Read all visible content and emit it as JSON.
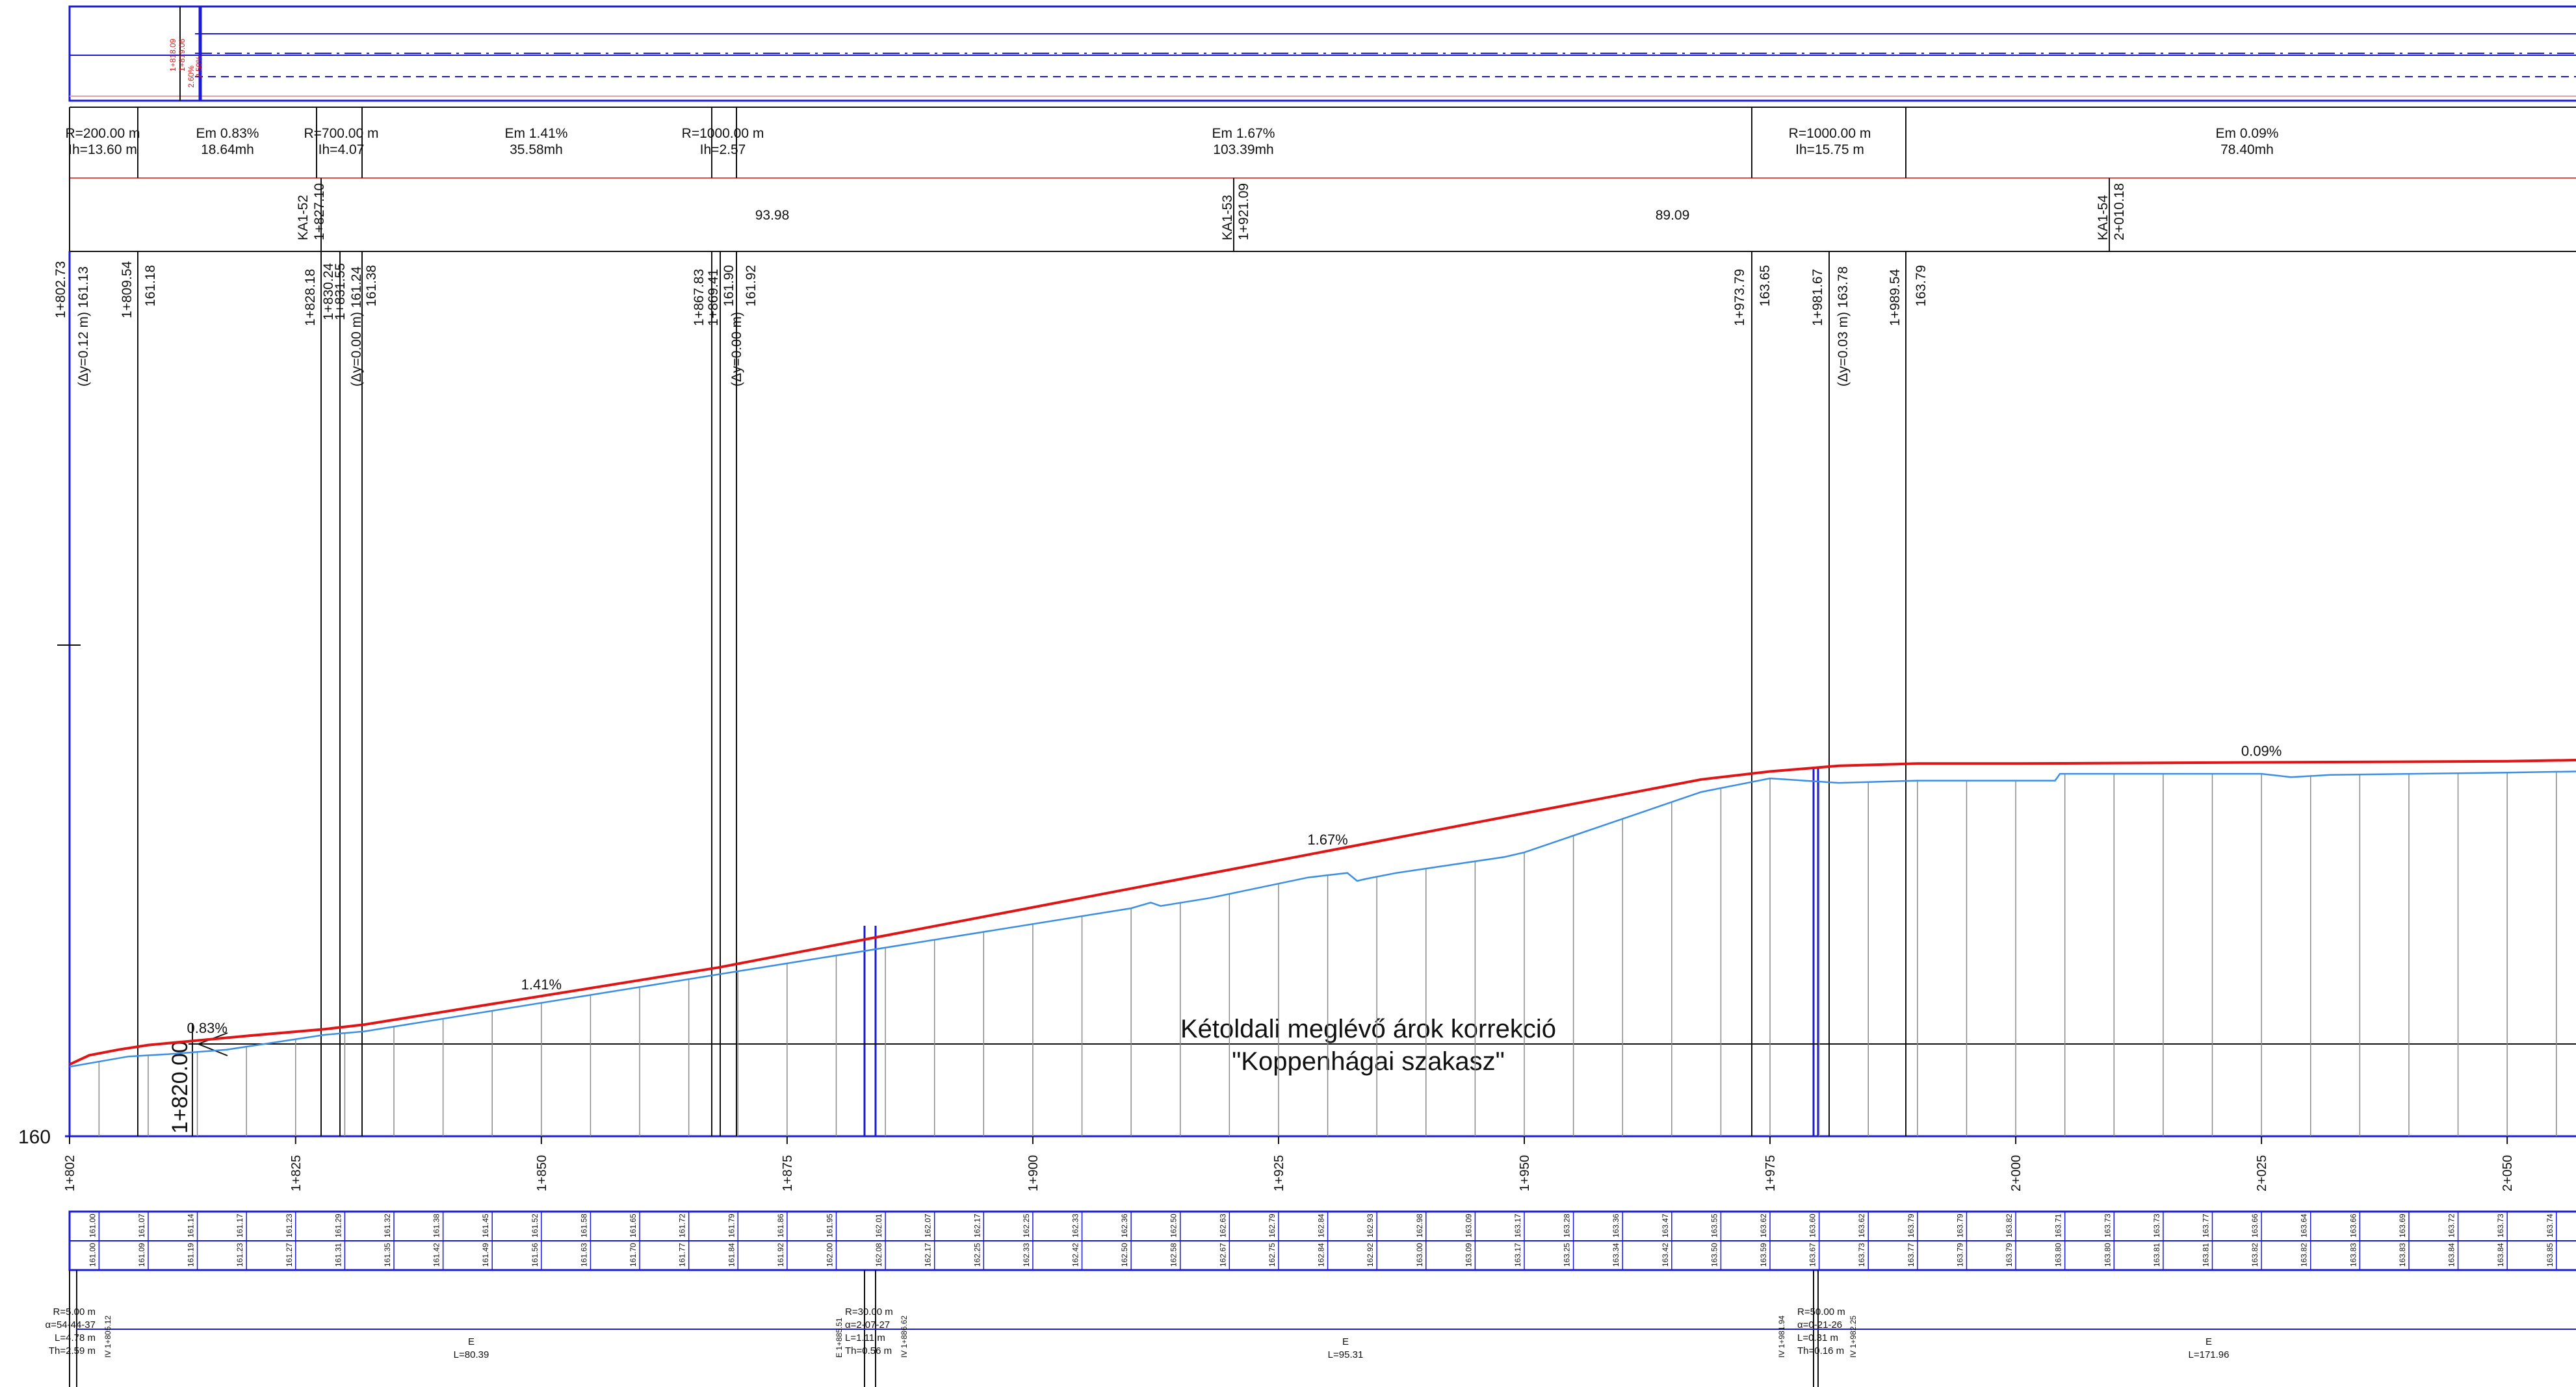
{
  "colors": {
    "frame": "#1b1bd6",
    "design_line": "#e01414",
    "terrain": "#3a8ee6",
    "ink": "#111111",
    "grid": "#7a7a7a",
    "marker_red": "#e01414"
  },
  "top_band": {
    "marker_text": [
      "1+818.09",
      "1+819.06",
      "2.60%",
      "2.50%"
    ]
  },
  "vertical_curves": [
    {
      "r": "R=200.00 m",
      "ih": "Ih=13.60 m"
    },
    {
      "em": "Em 0.83%",
      "mh": "18.64mh"
    },
    {
      "r": "R=700.00 m",
      "ih": "Ih=4.07"
    },
    {
      "em": "Em 1.41%",
      "mh": "35.58mh"
    },
    {
      "r": "R=1000.00 m",
      "ih": "Ih=2.57"
    },
    {
      "em": "Em 1.67%",
      "mh": "103.39mh"
    },
    {
      "r": "R=1000.00 m",
      "ih": "Ih=15.75 m"
    },
    {
      "em": "Em 0.09%",
      "mh": "78.40mh"
    }
  ],
  "structures": [
    {
      "id": "KA1-52",
      "station": "1+827.10"
    },
    {
      "span": "93.98"
    },
    {
      "id": "KA1-53",
      "station": "1+921.09"
    },
    {
      "span": "89.09"
    },
    {
      "id": "KA1-54",
      "station": "2+010.18"
    }
  ],
  "point_labels": [
    "1+802.73",
    "(Δy=0.12 m) 161.13",
    "1+809.54",
    "161.18",
    "1+828.18",
    "1+830.24",
    "1+831.55",
    "(Δy=0.00 m) 161.24",
    "161.38",
    "1+867.83",
    "1+869.41",
    "(Δy=0.00 m)",
    "161.90",
    "161.92",
    "1+973.79",
    "163.65",
    "1+981.67",
    "(Δy=0.03 m) 163.78",
    "1+989.54",
    "163.79"
  ],
  "annotations": {
    "station_marker": "1+820.00",
    "note_line1": "Kétoldali meglévő árok korrekció",
    "note_line2": "\"Koppenhágai szakasz\"",
    "datum": "160"
  },
  "chart_data": {
    "type": "line",
    "title": "",
    "xlabel": "",
    "ylabel": "",
    "datum_elevation": 160,
    "x_ticks": [
      "1+802",
      "1+825",
      "1+850",
      "1+875",
      "1+900",
      "1+925",
      "1+950",
      "1+975",
      "2+000",
      "2+025",
      "2+050"
    ],
    "grades": [
      {
        "label": "0.83%",
        "station": 1816
      },
      {
        "label": "1.41%",
        "station": 1850
      },
      {
        "label": "1.67%",
        "station": 1930
      },
      {
        "label": "0.09%",
        "station": 2025
      }
    ],
    "series": [
      {
        "role": "design",
        "x": [
          1802,
          1804,
          1807,
          1810,
          1815,
          1820,
          1828,
          1832,
          1868,
          1968,
          1975,
          1982,
          1990,
          2000,
          2025,
          2050,
          2057
        ],
        "y": [
          160.63,
          160.71,
          160.76,
          160.8,
          160.84,
          160.88,
          160.94,
          160.98,
          161.48,
          163.13,
          163.2,
          163.25,
          163.27,
          163.27,
          163.28,
          163.29,
          163.3
        ]
      },
      {
        "role": "terrain",
        "x": [
          1802,
          1808,
          1812,
          1818,
          1828,
          1832,
          1868,
          1910,
          1912,
          1913,
          1918,
          1928,
          1932,
          1933,
          1934,
          1937,
          1948,
          1950,
          1968,
          1975,
          1982,
          1990,
          2000,
          2004,
          2004.5,
          2025,
          2028,
          2032,
          2050,
          2057
        ],
        "y": [
          160.61,
          160.7,
          160.72,
          160.76,
          160.89,
          160.92,
          161.42,
          162.0,
          162.05,
          162.02,
          162.09,
          162.27,
          162.31,
          162.24,
          162.26,
          162.31,
          162.45,
          162.49,
          163.02,
          163.14,
          163.1,
          163.12,
          163.12,
          163.12,
          163.18,
          163.18,
          163.15,
          163.17,
          163.19,
          163.2
        ]
      }
    ]
  },
  "bottom_band": {
    "row1_values": [
      "161.00",
      "161.07",
      "161.14",
      "161.17",
      "161.23",
      "161.29",
      "161.32",
      "161.38",
      "161.45",
      "161.52",
      "161.58",
      "161.65",
      "161.72",
      "161.79",
      "161.86",
      "161.95",
      "162.01",
      "162.07",
      "162.17",
      "162.25",
      "162.33",
      "162.36",
      "162.50",
      "162.63",
      "162.79",
      "162.84",
      "162.93",
      "162.98",
      "163.09",
      "163.17",
      "163.28",
      "163.36",
      "163.47",
      "163.55",
      "163.62",
      "163.60",
      "163.62",
      "163.79",
      "163.79",
      "163.82",
      "163.71",
      "163.73",
      "163.73",
      "163.77",
      "163.66",
      "163.64",
      "163.66",
      "163.69",
      "163.72",
      "163.73",
      "163.74"
    ],
    "row2_values": [
      "161.00",
      "161.09",
      "161.19",
      "161.23",
      "161.27",
      "161.31",
      "161.35",
      "161.42",
      "161.49",
      "161.56",
      "161.63",
      "161.70",
      "161.77",
      "161.84",
      "161.92",
      "162.00",
      "162.08",
      "162.17",
      "162.25",
      "162.33",
      "162.42",
      "162.50",
      "162.58",
      "162.67",
      "162.75",
      "162.84",
      "162.92",
      "163.00",
      "163.09",
      "163.17",
      "163.25",
      "163.34",
      "163.42",
      "163.50",
      "163.59",
      "163.67",
      "163.73",
      "163.77",
      "163.79",
      "163.79",
      "163.80",
      "163.80",
      "163.81",
      "163.81",
      "163.82",
      "163.82",
      "163.83",
      "163.83",
      "163.84",
      "163.84",
      "163.85"
    ]
  },
  "horizontal_geometry": [
    {
      "r": "R=5.00 m",
      "a": "α=54-44-37",
      "l": "L=4.78 m",
      "th": "Th=2.59 m",
      "pt": "IV 1+805.12"
    },
    {
      "type": "E",
      "l": "L=80.39"
    },
    {
      "r": "R=30.00 m",
      "a": "α=2-07-27",
      "l": "L=1.11 m",
      "th": "Th=0.56 m",
      "pt_a": "E 1+885.51",
      "pt_b": "IV 1+886.62"
    },
    {
      "type": "E",
      "l": "L=95.31"
    },
    {
      "r": "R=50.00 m",
      "a": "α=0-21-26",
      "l": "L=0.31 m",
      "th": "Th=0.16 m",
      "pt_a": "IV 1+981.94",
      "pt_b": "IV 1+982.25"
    },
    {
      "type": "E",
      "l": "L=171.96"
    }
  ]
}
